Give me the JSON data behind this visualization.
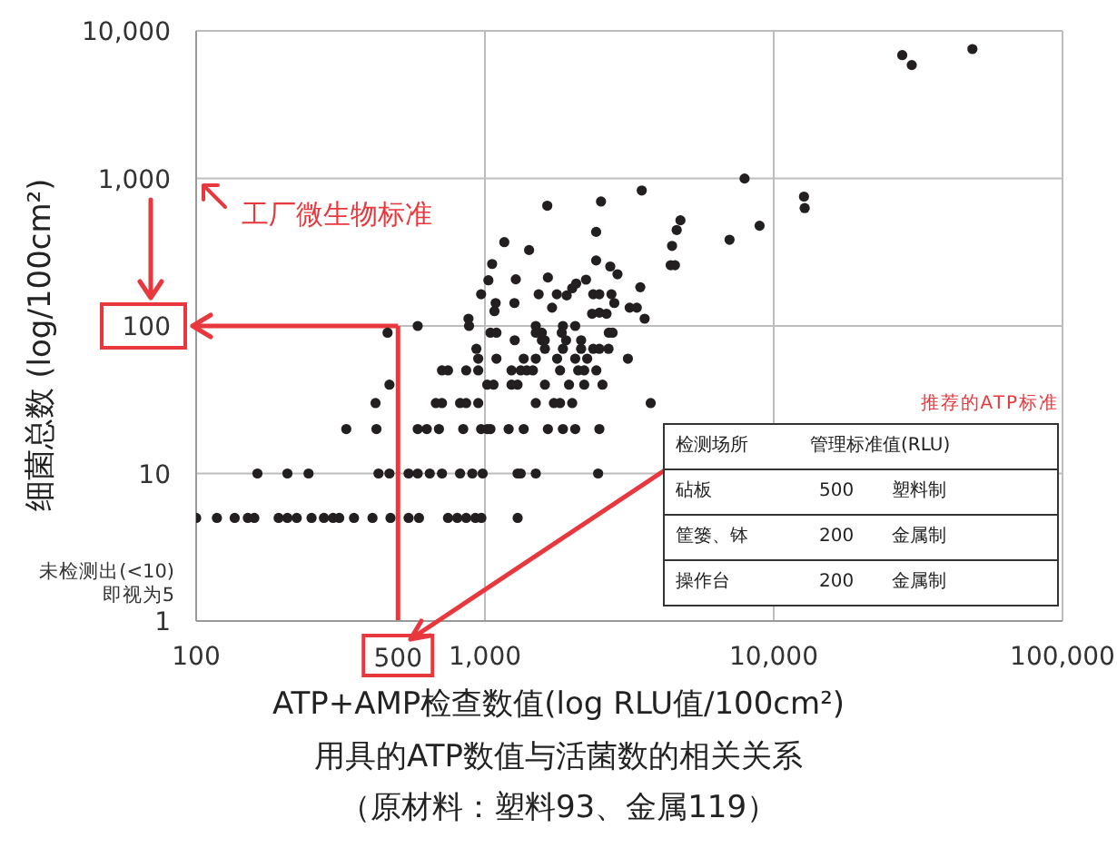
{
  "chart_data": {
    "type": "scatter",
    "title": "用具的ATP数值与活菌数的相关关系",
    "subtitle": "（原材料：塑料93、金属119）",
    "xlabel": "ATP+AMP检查数值(log RLU值/100cm²)",
    "ylabel": "细菌总数 (log/100cm²)",
    "annotations": [
      "工厂微生物标准",
      "推荐的ATP标准",
      "检测场所",
      "管理标准值(RLU)",
      "砧板",
      "500",
      "塑料制",
      "筐篓、钵",
      "200",
      "金属制",
      "操作台",
      "200",
      "金属制",
      "未检测出(<10)\n即视为5"
    ],
    "series": [
      {
        "color": "#231f20",
        "x": [
          100,
          118,
          136,
          151,
          159,
          193,
          207,
          223,
          251,
          277,
          298,
          313,
          352,
          408,
          471,
          544,
          591,
          745,
          802,
          861,
          927,
          972,
          1298,
          163,
          207,
          245,
          428,
          467,
          544,
          585,
          644,
          710,
          820,
          904,
          982,
          1297,
          1330,
          1500,
          2466,
          331,
          421,
          585,
          629,
          693,
          841,
          970,
          1018,
          1045,
          1208,
          1362,
          1652,
          1862,
          2054,
          2490,
          418,
          676,
          710,
          820,
          861,
          948,
          1500,
          1733,
          1820,
          2005,
          3750,
          467,
          1018,
          1071,
          1236,
          1297,
          1613,
          1955,
          2207,
          2553,
          710,
          745,
          861,
          948,
          1236,
          1330,
          1396,
          1466,
          1820,
          2103,
          2207,
          2431,
          948,
          1096,
          1362,
          1500,
          1778,
          2054,
          2260,
          3126,
          934,
          1613,
          1862,
          2371,
          2490,
          2679,
          2153,
          1268,
          1574,
          1910,
          2153,
          1611,
          460,
          1045,
          1096,
          1500,
          1845,
          2685,
          2767,
          1574,
          585,
          881,
          2054,
          1500,
          1862,
          970,
          1028,
          1059,
          1167,
          1089,
          1079,
          1279,
          1265,
          1422,
          1644,
          1535,
          1652,
          1708,
          1774,
          1919,
          2005,
          2070,
          2239,
          2371,
          2490,
          2427,
          2427,
          2523,
          2716,
          2877,
          2742,
          2805,
          2490,
          2350,
          3170,
          3357,
          3451,
          3573,
          3491,
          2636,
          877,
          4395,
          4550,
          4446,
          4613,
          4753,
          7031,
          7925,
          8933,
          27860,
          30060,
          48750,
          12730,
          12800
        ],
        "values": [
          5,
          5,
          5,
          5,
          5,
          5,
          5,
          5,
          5,
          5,
          5,
          5,
          5,
          5,
          5,
          5,
          5,
          5,
          5,
          5,
          5,
          5,
          5,
          10,
          10,
          10,
          10,
          10,
          10,
          10,
          10,
          10,
          10,
          10,
          10,
          10,
          10,
          10,
          10,
          20,
          20,
          20,
          20,
          20,
          20,
          20,
          20,
          20,
          20,
          20,
          20,
          20,
          20,
          20,
          30,
          30,
          30,
          30,
          30,
          30,
          30,
          30,
          30,
          30,
          30,
          40,
          40,
          40,
          40,
          40,
          40,
          40,
          40,
          40,
          50,
          50,
          50,
          50,
          50,
          50,
          50,
          50,
          50,
          50,
          50,
          50,
          60,
          60,
          60,
          60,
          60,
          60,
          60,
          60,
          70,
          70,
          70,
          70,
          70,
          70,
          70,
          80,
          80,
          80,
          80,
          80,
          90,
          90,
          90,
          90,
          90,
          90,
          90,
          90,
          100,
          100,
          100,
          100,
          100,
          164,
          204,
          263,
          370,
          143,
          126,
          207,
          143,
          327,
          653,
          164,
          213,
          133,
          164,
          161,
          180,
          194,
          206,
          164,
          164,
          434,
          278,
          697,
          253,
          224,
          164,
          143,
          123,
          121,
          133,
          133,
          183,
          112,
          828,
          121,
          112,
          258,
          258,
          349,
          447,
          520,
          384,
          998,
          478,
          6850,
          5870,
          7530,
          753,
          629
        ]
      }
    ],
    "xlim": [
      100,
      100000
    ],
    "ylim": [
      1,
      10000
    ],
    "xticks": [
      100,
      {
        "value": 1000,
        "label": "1,000"
      },
      {
        "value": 10000,
        "label": "10,000"
      },
      {
        "value": 100000,
        "label": "100,000"
      }
    ],
    "yticks": [
      1,
      10,
      100,
      {
        "value": 1000,
        "label": "1,000"
      },
      {
        "value": 10000,
        "label": "10,000"
      }
    ],
    "ref_lines": [
      {
        "axis": "x",
        "value": 500,
        "label": "500",
        "color": "#e8383d"
      },
      {
        "axis": "y",
        "value": 100,
        "color": "#e8383d"
      }
    ],
    "log": "xy",
    "grid": true,
    "marker": "circle",
    "legend": false
  }
}
